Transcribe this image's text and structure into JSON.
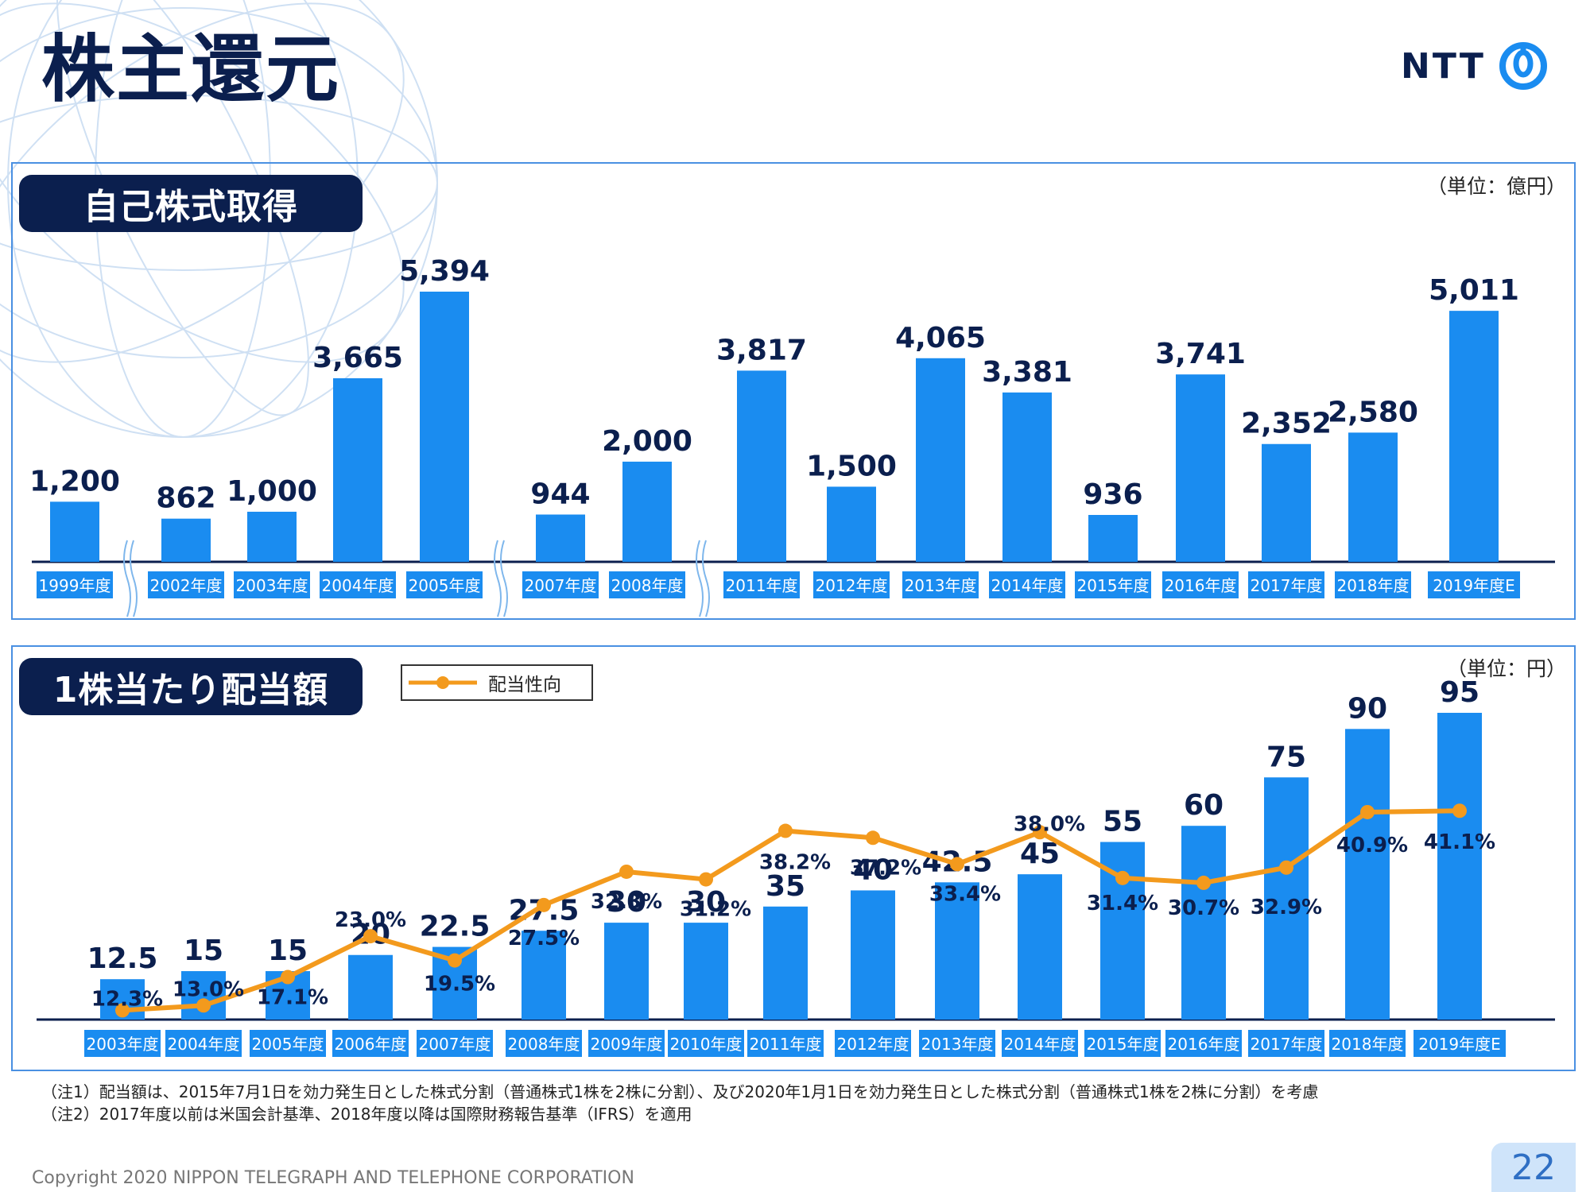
{
  "header": {
    "title": "株主還元",
    "logo_text": "NTT",
    "logo_icon": "ntt-circle-mark-icon"
  },
  "colors": {
    "bar": "#1a8cf0",
    "label_box": "#1a8cf0",
    "line": "#f39a1d",
    "navy": "#0b1f4e",
    "border": "#4a90e2"
  },
  "chart_data": [
    {
      "type": "bar",
      "title": "自己株式取得",
      "unit_label": "（単位：億円）",
      "categories": [
        "1999年度",
        "2002年度",
        "2003年度",
        "2004年度",
        "2005年度",
        "2007年度",
        "2008年度",
        "2011年度",
        "2012年度",
        "2013年度",
        "2014年度",
        "2015年度",
        "2016年度",
        "2017年度",
        "2018年度",
        "2019年度E"
      ],
      "values": [
        1200,
        862,
        1000,
        3665,
        5394,
        944,
        2000,
        3817,
        1500,
        4065,
        3381,
        936,
        3741,
        2352,
        2580,
        5011
      ],
      "value_labels": [
        "1,200",
        "862",
        "1,000",
        "3,665",
        "5,394",
        "944",
        "2,000",
        "3,817",
        "1,500",
        "4,065",
        "3,381",
        "936",
        "3,741",
        "2,352",
        "2,580",
        "5,011"
      ],
      "axis_breaks_after": [
        "1999年度",
        "2005年度",
        "2008年度"
      ],
      "ylim": [
        0,
        5700
      ],
      "grid": false
    },
    {
      "type": "bar",
      "title": "1株当たり配当額",
      "unit_label": "（単位：円）",
      "legend": [
        "配当性向"
      ],
      "legend_position": "top-left",
      "categories": [
        "2003年度",
        "2004年度",
        "2005年度",
        "2006年度",
        "2007年度",
        "2008年度",
        "2009年度",
        "2010年度",
        "2011年度",
        "2012年度",
        "2013年度",
        "2014年度",
        "2015年度",
        "2016年度",
        "2017年度",
        "2018年度",
        "2019年度E"
      ],
      "values": [
        12.5,
        15,
        15,
        20,
        22.5,
        27.5,
        30,
        30,
        35,
        40,
        42.5,
        45,
        55,
        60,
        75,
        90,
        95
      ],
      "value_labels": [
        "12.5",
        "15",
        "15",
        "20",
        "22.5",
        "27.5",
        "30",
        "30",
        "35",
        "40",
        "42.5",
        "45",
        "55",
        "60",
        "75",
        "90",
        "95"
      ],
      "ylim": [
        0,
        100
      ],
      "series": [
        {
          "name": "配当性向",
          "type": "line",
          "values": [
            12.3,
            13.0,
            17.1,
            23.0,
            19.5,
            27.5,
            32.3,
            31.2,
            38.2,
            37.2,
            33.4,
            38.0,
            31.4,
            30.7,
            32.9,
            40.9,
            41.1
          ],
          "value_labels": [
            "12.3%",
            "13.0%",
            "17.1%",
            "23.0%",
            "19.5%",
            "27.5%",
            "32.3%",
            "31.2%",
            "38.2%",
            "37.2%",
            "33.4%",
            "38.0%",
            "31.4%",
            "30.7%",
            "32.9%",
            "40.9%",
            "41.1%"
          ]
        }
      ],
      "grid": false
    }
  ],
  "notes": [
    "（注1）配当額は、2015年7月1日を効力発生日とした株式分割（普通株式1株を2株に分割）、及び2020年1月1日を効力発生日とした株式分割（普通株式1株を2株に分割）を考慮",
    "（注2）2017年度以前は米国会計基準、2018年度以降は国際財務報告基準（IFRS）を適用"
  ],
  "footer": {
    "copyright": "Copyright 2020 NIPPON TELEGRAPH AND TELEPHONE CORPORATION",
    "page_number": "22"
  }
}
